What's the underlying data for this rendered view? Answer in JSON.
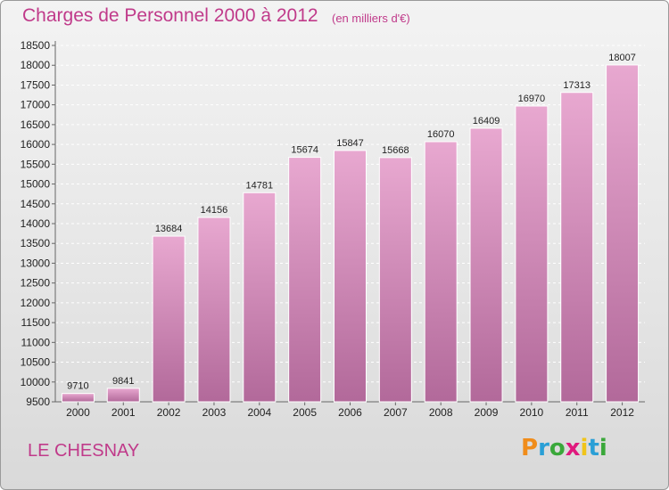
{
  "title": "Charges de Personnel 2000 à 2012",
  "subtitle": "(en milliers d'€)",
  "commune": "LE CHESNAY",
  "logo": {
    "text": "Proxiti",
    "letters": [
      "P",
      "r",
      "o",
      "x",
      "i",
      "t",
      "i"
    ]
  },
  "colors": {
    "accent": "#c03a8a",
    "bar_top": "#e8a8d0",
    "bar_bottom": "#b2699a"
  },
  "chart_data": {
    "type": "bar",
    "title": "Charges de Personnel 2000 à 2012",
    "subtitle": "(en milliers d'€)",
    "categories": [
      "2000",
      "2001",
      "2002",
      "2003",
      "2004",
      "2005",
      "2006",
      "2007",
      "2008",
      "2009",
      "2010",
      "2011",
      "2012"
    ],
    "values": [
      9710,
      9841,
      13684,
      14156,
      14781,
      15674,
      15847,
      15668,
      16070,
      16409,
      16970,
      17313,
      18007
    ],
    "ylim": [
      9500,
      18500
    ],
    "yticks": [
      9500,
      10000,
      10500,
      11000,
      11500,
      12000,
      12500,
      13000,
      13500,
      14000,
      14500,
      15000,
      15500,
      16000,
      16500,
      17000,
      17500,
      18000,
      18500
    ],
    "grid": true,
    "xlabel": "",
    "ylabel": ""
  }
}
